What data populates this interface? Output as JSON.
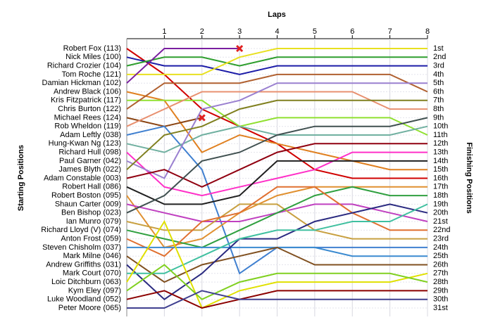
{
  "chart_data": {
    "type": "line",
    "title": "Laps",
    "ylabel": "Starting Positions",
    "y2label": "Finishing Positions",
    "x": [
      0,
      1,
      2,
      3,
      4,
      5,
      6,
      7,
      8
    ],
    "xlim": [
      0,
      8
    ],
    "xticks": [
      1,
      2,
      3,
      4,
      5,
      6,
      7,
      8
    ],
    "ylim": [
      1,
      31
    ],
    "yticks": [
      {
        "value": 1,
        "label": "1st"
      },
      {
        "value": 2,
        "label": "2nd"
      },
      {
        "value": 3,
        "label": "3rd"
      },
      {
        "value": 4,
        "label": "4th"
      },
      {
        "value": 5,
        "label": "5th"
      },
      {
        "value": 6,
        "label": "6th"
      },
      {
        "value": 7,
        "label": "7th"
      },
      {
        "value": 8,
        "label": "8th"
      },
      {
        "value": 9,
        "label": "9th"
      },
      {
        "value": 10,
        "label": "10th"
      },
      {
        "value": 11,
        "label": "11th"
      },
      {
        "value": 12,
        "label": "12th"
      },
      {
        "value": 13,
        "label": "13th"
      },
      {
        "value": 14,
        "label": "14th"
      },
      {
        "value": 15,
        "label": "15th"
      },
      {
        "value": 16,
        "label": "16th"
      },
      {
        "value": 17,
        "label": "17th"
      },
      {
        "value": 18,
        "label": "18th"
      },
      {
        "value": 19,
        "label": "19th"
      },
      {
        "value": 20,
        "label": "20th"
      },
      {
        "value": 21,
        "label": "21st"
      },
      {
        "value": 22,
        "label": "22nd"
      },
      {
        "value": 23,
        "label": "23rd"
      },
      {
        "value": 24,
        "label": "24th"
      },
      {
        "value": 25,
        "label": "25th"
      },
      {
        "value": 26,
        "label": "26th"
      },
      {
        "value": 27,
        "label": "27th"
      },
      {
        "value": 28,
        "label": "28th"
      },
      {
        "value": 29,
        "label": "29th"
      },
      {
        "value": 30,
        "label": "30th"
      },
      {
        "value": 31,
        "label": "31st"
      }
    ],
    "grid": true,
    "series": [
      {
        "name": "Robert Fox (113)",
        "color": "#d00000",
        "values": [
          1,
          4,
          8,
          10,
          12,
          15,
          16,
          16,
          16
        ]
      },
      {
        "name": "Nick Miles (100)",
        "color": "#1c1ca8",
        "values": [
          2,
          3,
          3,
          4,
          3,
          3,
          3,
          3,
          3
        ]
      },
      {
        "name": "Richard Crozier (104)",
        "color": "#2e9e2e",
        "values": [
          3,
          2,
          2,
          3,
          2,
          2,
          2,
          2,
          2
        ]
      },
      {
        "name": "Tom Roche (121)",
        "color": "#e8e020",
        "values": [
          4,
          4,
          4,
          2,
          1,
          1,
          1,
          1,
          1
        ]
      },
      {
        "name": "Damian Hickman (102)",
        "color": "#7a1fa0",
        "values": [
          5,
          1,
          1,
          1,
          null,
          null,
          null,
          null,
          null
        ]
      },
      {
        "name": "Andrew Black (106)",
        "color": "#e08020",
        "values": [
          6,
          7,
          13,
          11,
          12,
          13,
          14,
          15,
          15
        ]
      },
      {
        "name": "Kris Fitzpatrick (117)",
        "color": "#90e030",
        "values": [
          7,
          7,
          7,
          10,
          9,
          9,
          9,
          9,
          11
        ]
      },
      {
        "name": "Chris Burton (122)",
        "color": "#b06030",
        "values": [
          8,
          5,
          5,
          5,
          4,
          4,
          4,
          4,
          6
        ]
      },
      {
        "name": "Michael Rees (124)",
        "color": "#8b4513",
        "values": [
          9,
          10,
          9,
          null,
          null,
          null,
          null,
          null,
          null
        ]
      },
      {
        "name": "Rob Wheldon (119)",
        "color": "#e89070",
        "values": [
          10,
          8,
          6,
          6,
          6,
          6,
          6,
          8,
          8
        ]
      },
      {
        "name": "Adam Leftly (038)",
        "color": "#4080d0",
        "values": [
          11,
          10,
          15,
          27,
          24,
          24,
          24,
          24,
          24
        ]
      },
      {
        "name": "Hung-Kwan Ng (123)",
        "color": "#70b0a0",
        "values": [
          12,
          13,
          11,
          10,
          11,
          11,
          11,
          11,
          10
        ]
      },
      {
        "name": "Richard Hull (098)",
        "color": "#ff30c8",
        "values": [
          13,
          17,
          18,
          17,
          16,
          15,
          13,
          13,
          13
        ]
      },
      {
        "name": "Paul Garner (042)",
        "color": "#9a80d0",
        "values": [
          14,
          16,
          8,
          7,
          5,
          5,
          5,
          5,
          5
        ]
      },
      {
        "name": "James Blyth (022)",
        "color": "#808020",
        "values": [
          15,
          11,
          10,
          8,
          7,
          7,
          7,
          7,
          7
        ]
      },
      {
        "name": "Adam Constable (003)",
        "color": "#900010",
        "values": [
          16,
          15,
          17,
          15,
          13,
          12,
          12,
          12,
          12
        ]
      },
      {
        "name": "Robert Hall (086)",
        "color": "#202020",
        "values": [
          17,
          19,
          19,
          18,
          14,
          14,
          14,
          14,
          14
        ]
      },
      {
        "name": "Robert Boston (095)",
        "color": "#e09030",
        "values": [
          18,
          24,
          23,
          20,
          18,
          17,
          17,
          17,
          17
        ]
      },
      {
        "name": "Shaun Carter (009)",
        "color": "#c040c0",
        "values": [
          19,
          20,
          21,
          21,
          20,
          19,
          19,
          20,
          21
        ]
      },
      {
        "name": "Ben Bishop (023)",
        "color": "#405050",
        "values": [
          20,
          18,
          14,
          13,
          11,
          10,
          10,
          10,
          9
        ]
      },
      {
        "name": "Ian Munro (079)",
        "color": "#c8a040",
        "values": [
          21,
          22,
          22,
          19,
          19,
          22,
          23,
          23,
          23
        ]
      },
      {
        "name": "Richard Lloyd (V) (074)",
        "color": "#30a040",
        "values": [
          22,
          23,
          24,
          22,
          20,
          18,
          17,
          18,
          18
        ]
      },
      {
        "name": "Anton Frost (059)",
        "color": "#e07030",
        "values": [
          23,
          25,
          21,
          20,
          17,
          17,
          20,
          22,
          22
        ]
      },
      {
        "name": "Steven Chisholm (037)",
        "color": "#3a8ad0",
        "values": [
          24,
          24,
          24,
          24,
          24,
          24,
          25,
          25,
          25
        ]
      },
      {
        "name": "Mark Milne (046)",
        "color": "#805020",
        "values": [
          25,
          28,
          26,
          25,
          24,
          26,
          26,
          26,
          26
        ]
      },
      {
        "name": "Andrew Griffiths (031)",
        "color": "#2a2a80",
        "values": [
          26,
          30,
          27,
          23,
          23,
          21,
          20,
          19,
          20
        ]
      },
      {
        "name": "Mark Court (070)",
        "color": "#40c0a0",
        "values": [
          27,
          27,
          25,
          23,
          22,
          22,
          21,
          21,
          19
        ]
      },
      {
        "name": "Loic Ditchburn (063)",
        "color": "#e0e000",
        "values": [
          28,
          21,
          31,
          29,
          28,
          28,
          28,
          28,
          27
        ]
      },
      {
        "name": "Kym Eley (097)",
        "color": "#80d020",
        "values": [
          29,
          26,
          30,
          28,
          27,
          27,
          27,
          27,
          28
        ]
      },
      {
        "name": "Luke Woodland (052)",
        "color": "#8b0000",
        "values": [
          30,
          29,
          31,
          30,
          29,
          29,
          29,
          29,
          29
        ]
      },
      {
        "name": "Peter Moore (065)",
        "color": "#404090",
        "values": [
          31,
          31,
          29,
          30,
          30,
          30,
          30,
          30,
          30
        ]
      }
    ]
  }
}
